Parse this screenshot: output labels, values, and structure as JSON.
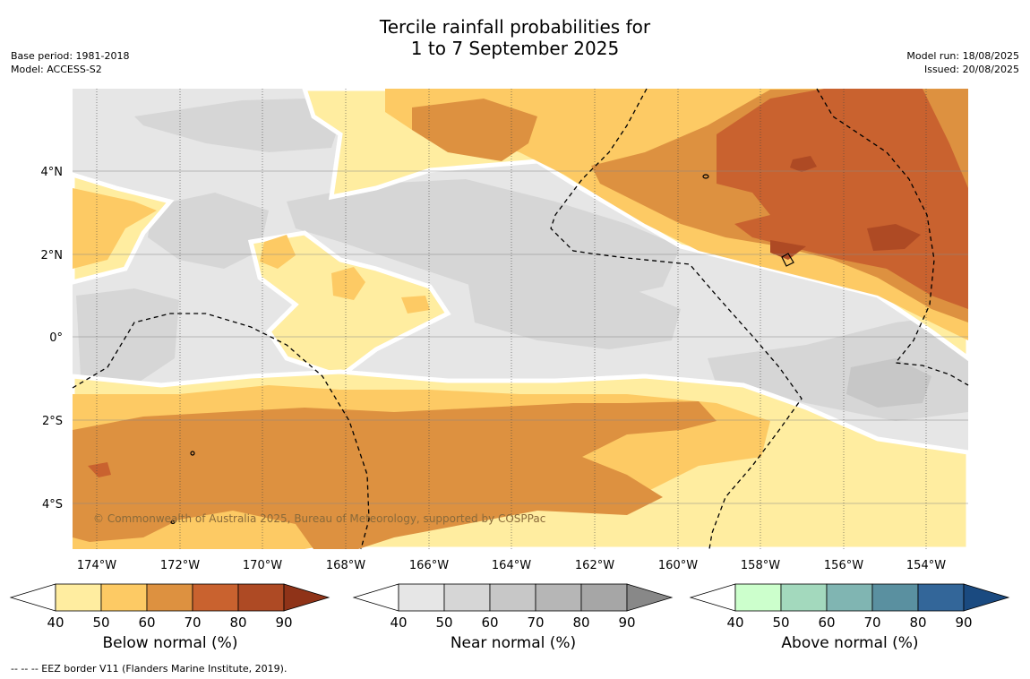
{
  "title": {
    "line1": "Tercile rainfall probabilities for",
    "line2": "1 to 7 September 2025"
  },
  "meta_left": {
    "base_period": "Base period: 1981-2018",
    "model": "Model: ACCESS-S2"
  },
  "meta_right": {
    "model_run": "Model run: 18/08/2025",
    "issued": "Issued: 20/08/2025"
  },
  "map": {
    "lat_labels": [
      "4°N",
      "2°N",
      "0°",
      "2°S",
      "4°S"
    ],
    "lon_labels": [
      "174°W",
      "172°W",
      "170°W",
      "168°W",
      "166°W",
      "164°W",
      "162°W",
      "160°W",
      "158°W",
      "156°W",
      "154°W"
    ],
    "copyright": "© Commonwealth of Australia 2025, Bureau of Meteorology, supported by COSPPac",
    "colors": {
      "below_40": "#ffeda0",
      "below_50": "#fdca64",
      "below_60": "#dd9140",
      "below_70": "#c9622f",
      "below_80": "#ae4a24",
      "near_40": "#e6e6e6",
      "near_50": "#d6d6d6",
      "near_60": "#c7c7c7"
    }
  },
  "legends": [
    {
      "label": "Below normal (%)",
      "ticks": [
        "40",
        "50",
        "60",
        "70",
        "80",
        "90"
      ],
      "colors": [
        "#ffeda0",
        "#fdca64",
        "#dd9140",
        "#c9622f",
        "#ae4a24",
        "#8f3318"
      ]
    },
    {
      "label": "Near normal (%)",
      "ticks": [
        "40",
        "50",
        "60",
        "70",
        "80",
        "90"
      ],
      "colors": [
        "#e6e6e6",
        "#d6d6d6",
        "#c7c7c7",
        "#b6b6b6",
        "#a6a6a6",
        "#888888"
      ]
    },
    {
      "label": "Above normal (%)",
      "ticks": [
        "40",
        "50",
        "60",
        "70",
        "80",
        "90"
      ],
      "colors": [
        "#ccffcc",
        "#a3d9bd",
        "#80b5b2",
        "#5a90a0",
        "#336699",
        "#1a4a80"
      ]
    }
  ],
  "footnote": "--  --  -- EEZ border V11 (Flanders Marine Institute, 2019)."
}
